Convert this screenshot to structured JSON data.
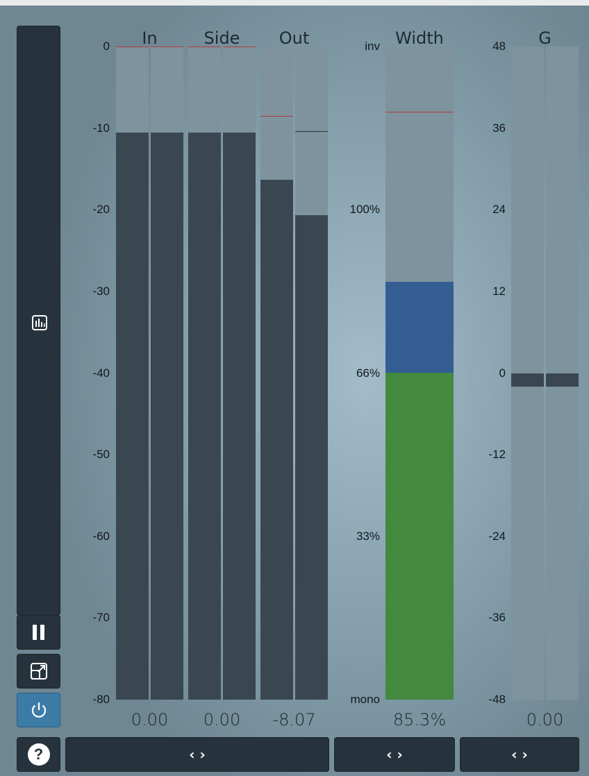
{
  "headers": {
    "in": "In",
    "side": "Side",
    "out": "Out",
    "width": "Width",
    "gain": "G"
  },
  "db_scale": [
    "0",
    "-10",
    "-20",
    "-30",
    "-40",
    "-50",
    "-60",
    "-70",
    "-80"
  ],
  "width_scale": [
    "inv",
    "100%",
    "66%",
    "33%",
    "mono"
  ],
  "gain_scale": [
    "48",
    "36",
    "24",
    "12",
    "0",
    "-12",
    "-24",
    "-36",
    "-48"
  ],
  "values": {
    "in": "0.00",
    "side": "0.00",
    "out": "-8.07",
    "width": "85.3%",
    "gain": "0.00"
  },
  "meters": {
    "in": [
      {
        "level_db": -10.5,
        "peak_db": 0
      },
      {
        "level_db": -10.5,
        "peak_db": 0
      }
    ],
    "side": [
      {
        "level_db": -10.5,
        "peak_db": 0
      },
      {
        "level_db": -10.5,
        "peak_db": 0
      }
    ],
    "out": [
      {
        "level_db": -16.3,
        "peak_db": -8.5
      },
      {
        "level_db": -20.7,
        "peak_db": -10.4
      }
    ],
    "width": {
      "scale": [
        "mono",
        "33%",
        "66%",
        "100%",
        "inv"
      ],
      "green_to": "66%",
      "blue_to": "85.3%",
      "peak_marker": "inv minus one small step"
    },
    "gain": [
      {
        "top": 0,
        "bottom": -2
      },
      {
        "top": 0,
        "bottom": -2
      }
    ]
  },
  "buttons": {
    "nav": "‹ ›"
  },
  "icons": {
    "meters": "bar-meter-icon",
    "pause": "pause-icon",
    "resize": "resize-icon",
    "power": "power-icon",
    "help": "help-icon"
  },
  "colors": {
    "green": "#43893e",
    "blue": "#345e92",
    "active": "#3d7ba7",
    "dark": "#26333c"
  }
}
